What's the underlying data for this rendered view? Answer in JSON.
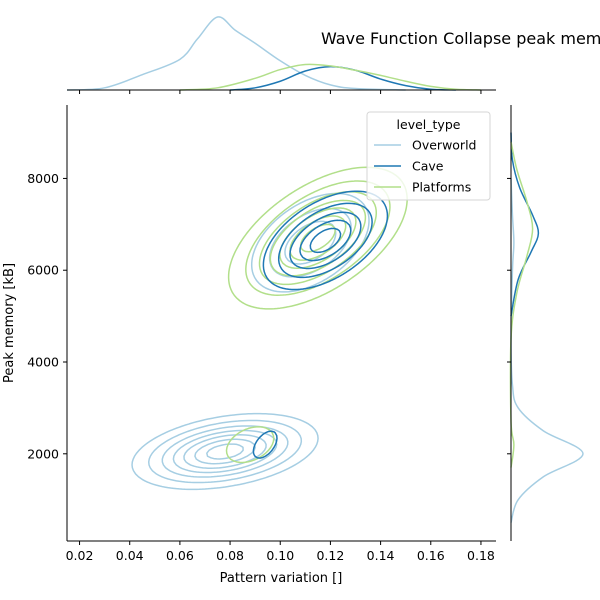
{
  "chart_data": {
    "type": "kde-jointplot",
    "title": "Wave Function Collapse peak mem",
    "xlabel": "Pattern variation []",
    "ylabel": "Peak memory [kB]",
    "xlim": [
      0.015,
      0.186
    ],
    "ylim": [
      100,
      9600
    ],
    "x_ticks": [
      0.02,
      0.04,
      0.06,
      0.08,
      0.1,
      0.12,
      0.14,
      0.16,
      0.18
    ],
    "x_tick_labels": [
      "0.02",
      "0.04",
      "0.06",
      "0.08",
      "0.10",
      "0.12",
      "0.14",
      "0.16",
      "0.18"
    ],
    "y_ticks": [
      2000,
      4000,
      6000,
      8000
    ],
    "y_tick_labels": [
      "2000",
      "4000",
      "6000",
      "8000"
    ],
    "grid": false,
    "legend": {
      "title": "level_type",
      "placement": "top-right",
      "entries": [
        "Overworld",
        "Cave",
        "Platforms"
      ]
    },
    "series": [
      {
        "name": "Overworld",
        "color": "#a6cee3",
        "clusters": [
          {
            "center": [
              0.078,
              2050
            ],
            "sd": [
              0.018,
              400
            ],
            "rho": 0.35,
            "levels": [
              0.12,
              0.24,
              0.38,
              0.52,
              0.66,
              0.8,
              0.92
            ],
            "weight": 0.95
          },
          {
            "center": [
              0.112,
              6600
            ],
            "sd": [
              0.012,
              550
            ],
            "rho": 0.45,
            "levels": [
              0.15,
              0.4,
              0.7
            ],
            "weight": 0.05
          }
        ],
        "x_marginal": [
          [
            0.015,
            0.0
          ],
          [
            0.03,
            0.03
          ],
          [
            0.045,
            0.21
          ],
          [
            0.06,
            0.42
          ],
          [
            0.067,
            0.7
          ],
          [
            0.075,
            1.0
          ],
          [
            0.082,
            0.82
          ],
          [
            0.09,
            0.64
          ],
          [
            0.1,
            0.4
          ],
          [
            0.11,
            0.2
          ],
          [
            0.12,
            0.07
          ],
          [
            0.13,
            0.02
          ],
          [
            0.15,
            0.0
          ]
        ],
        "y_marginal": [
          [
            500,
            0.0
          ],
          [
            1000,
            0.1
          ],
          [
            1500,
            0.45
          ],
          [
            2000,
            1.0
          ],
          [
            2500,
            0.45
          ],
          [
            3000,
            0.1
          ],
          [
            3500,
            0.02
          ],
          [
            4500,
            0.0
          ],
          [
            6000,
            0.02
          ],
          [
            6600,
            0.04
          ],
          [
            7200,
            0.02
          ],
          [
            8000,
            0.0
          ]
        ]
      },
      {
        "name": "Cave",
        "color": "#1f78b4",
        "clusters": [
          {
            "center": [
              0.118,
              6650
            ],
            "sd": [
              0.012,
              520
            ],
            "rho": 0.5,
            "levels": [
              0.12,
              0.3,
              0.5,
              0.7,
              0.88
            ],
            "weight": 0.9
          },
          {
            "center": [
              0.094,
              2200
            ],
            "sd": [
              0.004,
              250
            ],
            "rho": 0.5,
            "levels": [
              0.5
            ],
            "weight": 0.1
          }
        ],
        "x_marginal": [
          [
            0.08,
            0.0
          ],
          [
            0.09,
            0.03
          ],
          [
            0.1,
            0.12
          ],
          [
            0.11,
            0.26
          ],
          [
            0.12,
            0.32
          ],
          [
            0.13,
            0.27
          ],
          [
            0.14,
            0.15
          ],
          [
            0.15,
            0.06
          ],
          [
            0.16,
            0.01
          ],
          [
            0.17,
            0.0
          ]
        ],
        "y_marginal": [
          [
            5000,
            0.0
          ],
          [
            5800,
            0.1
          ],
          [
            6400,
            0.28
          ],
          [
            6800,
            0.38
          ],
          [
            7200,
            0.3
          ],
          [
            7800,
            0.12
          ],
          [
            8400,
            0.02
          ],
          [
            9000,
            0.0
          ]
        ]
      },
      {
        "name": "Platforms",
        "color": "#b2df8a",
        "clusters": [
          {
            "center": [
              0.115,
              6700
            ],
            "sd": [
              0.015,
              650
            ],
            "rho": 0.55,
            "levels": [
              0.06,
              0.16,
              0.3,
              0.45,
              0.6,
              0.76,
              0.9
            ],
            "weight": 0.9
          },
          {
            "center": [
              0.088,
              2200
            ],
            "sd": [
              0.008,
              330
            ],
            "rho": 0.35,
            "levels": [
              0.5
            ],
            "weight": 0.1
          }
        ],
        "x_marginal": [
          [
            0.06,
            0.0
          ],
          [
            0.075,
            0.03
          ],
          [
            0.09,
            0.16
          ],
          [
            0.1,
            0.28
          ],
          [
            0.11,
            0.35
          ],
          [
            0.12,
            0.33
          ],
          [
            0.13,
            0.27
          ],
          [
            0.14,
            0.2
          ],
          [
            0.15,
            0.12
          ],
          [
            0.16,
            0.05
          ],
          [
            0.17,
            0.01
          ],
          [
            0.18,
            0.0
          ]
        ],
        "y_marginal": [
          [
            1700,
            0.0
          ],
          [
            2200,
            0.04
          ],
          [
            2700,
            0.0
          ],
          [
            4500,
            0.0
          ],
          [
            5500,
            0.08
          ],
          [
            6300,
            0.22
          ],
          [
            6900,
            0.3
          ],
          [
            7500,
            0.22
          ],
          [
            8200,
            0.08
          ],
          [
            8800,
            0.0
          ]
        ]
      }
    ]
  }
}
